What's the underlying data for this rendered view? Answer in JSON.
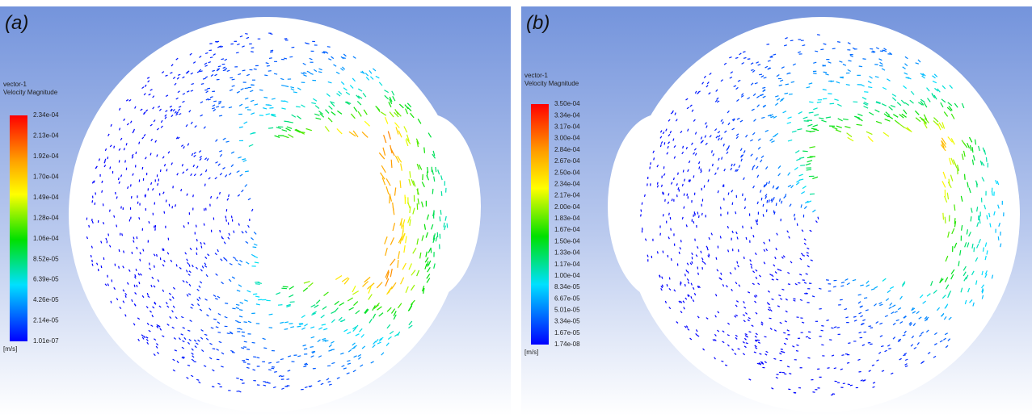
{
  "panels": [
    {
      "label": "(a)",
      "legend": {
        "title": "vector-1",
        "subtitle": "Velocity Magnitude",
        "unit": "[m/s]",
        "ticks": [
          "2.34e-04",
          "2.13e-04",
          "1.92e-04",
          "1.70e-04",
          "1.49e-04",
          "1.28e-04",
          "1.06e-04",
          "8.52e-05",
          "6.39e-05",
          "4.26e-05",
          "2.14e-05",
          "1.01e-07"
        ]
      }
    },
    {
      "label": "(b)",
      "legend": {
        "title": "vector-1",
        "subtitle": "Velocity Magnitude",
        "unit": "[m/s]",
        "ticks": [
          "3.50e-04",
          "3.34e-04",
          "3.17e-04",
          "3.00e-04",
          "2.84e-04",
          "2.67e-04",
          "2.50e-04",
          "2.34e-04",
          "2.17e-04",
          "2.00e-04",
          "1.83e-04",
          "1.67e-04",
          "1.50e-04",
          "1.33e-04",
          "1.17e-04",
          "1.00e-04",
          "8.34e-05",
          "6.67e-05",
          "5.01e-05",
          "3.34e-05",
          "1.67e-05",
          "1.74e-08"
        ]
      }
    }
  ]
}
